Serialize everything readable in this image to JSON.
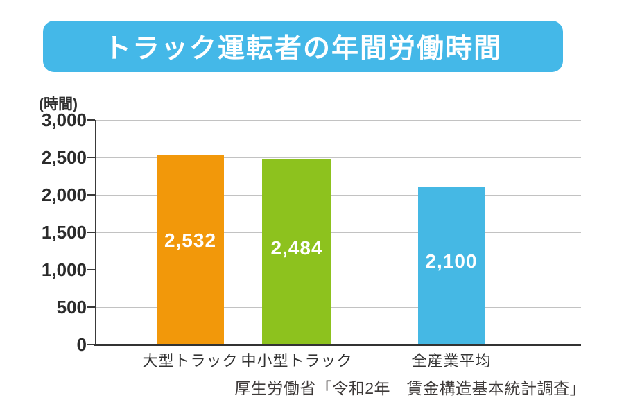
{
  "title": {
    "text": "トラック運転者の年間労働時間",
    "banner_color": "#44b8e8",
    "text_color": "#ffffff"
  },
  "chart_data": {
    "type": "bar",
    "title": "トラック運転者の年間労働時間",
    "unit_label": "(時間)",
    "categories": [
      "大型トラック",
      "中小型トラック",
      "全産業平均"
    ],
    "values": [
      2532,
      2484,
      2100
    ],
    "value_labels": [
      "2,532",
      "2,484",
      "2,100"
    ],
    "bar_colors": [
      "#f2980a",
      "#8dc21e",
      "#45b8e4"
    ],
    "ylabel": "時間",
    "ylim": [
      0,
      3000
    ],
    "ytick_interval": 500,
    "yticks": [
      "3,000",
      "2,500",
      "2,000",
      "1,500",
      "1,000",
      "500",
      "0"
    ],
    "grid": true,
    "legend": false,
    "source": "厚生労働省「令和2年　賃金構造基本統計調査」"
  }
}
